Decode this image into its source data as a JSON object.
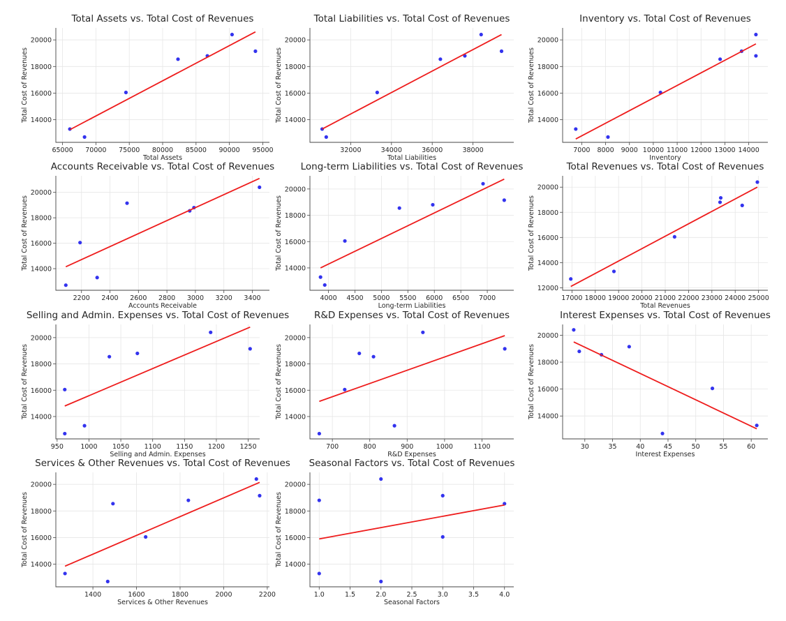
{
  "colors": {
    "point": "#3333ee",
    "fit_line": "#ee1c1c",
    "grid": "#e6e6e6"
  },
  "chart_data": [
    {
      "type": "scatter",
      "title": "Total Assets vs. Total Cost of Revenues",
      "xlabel": "Total Assets",
      "ylabel": "Total Cost of Revenues",
      "xlim": [
        64000,
        96000
      ],
      "ylim": [
        12300,
        20900
      ],
      "xticks": [
        65000,
        70000,
        75000,
        80000,
        85000,
        90000,
        95000
      ],
      "yticks": [
        14000,
        16000,
        18000,
        20000
      ],
      "x": [
        66100,
        68300,
        74500,
        82300,
        86700,
        90400,
        93900
      ],
      "y": [
        13300,
        12700,
        16050,
        18550,
        18800,
        20400,
        19150
      ],
      "fit_line": {
        "x": [
          66100,
          93900
        ],
        "y": [
          13250,
          20600
        ]
      },
      "grid": true
    },
    {
      "type": "scatter",
      "title": "Total Liabilities vs. Total Cost of Revenues",
      "xlabel": "Total Liabilities",
      "ylabel": "Total Cost of Revenues",
      "xlim": [
        30000,
        40000
      ],
      "ylim": [
        12300,
        20900
      ],
      "xticks": [
        32000,
        34000,
        36000,
        38000
      ],
      "yticks": [
        14000,
        16000,
        18000,
        20000
      ],
      "x": [
        30600,
        30800,
        33300,
        36400,
        37600,
        38400,
        39400
      ],
      "y": [
        13300,
        12700,
        16050,
        18550,
        18800,
        20400,
        19150
      ],
      "fit_line": {
        "x": [
          30600,
          39400
        ],
        "y": [
          13300,
          20400
        ]
      },
      "grid": true
    },
    {
      "type": "scatter",
      "title": "Inventory vs. Total Cost of Revenues",
      "xlabel": "Inventory",
      "ylabel": "Total Cost of Revenues",
      "xlim": [
        6200,
        14800
      ],
      "ylim": [
        12300,
        20900
      ],
      "xticks": [
        7000,
        8000,
        9000,
        10000,
        11000,
        12000,
        13000,
        14000
      ],
      "yticks": [
        14000,
        16000,
        18000,
        20000
      ],
      "x": [
        6750,
        8100,
        10300,
        12800,
        13700,
        14300,
        14300
      ],
      "y": [
        13300,
        12700,
        16050,
        18550,
        19150,
        18800,
        20400
      ],
      "fit_line": {
        "x": [
          6750,
          14300
        ],
        "y": [
          12550,
          19700
        ]
      },
      "grid": true
    },
    {
      "type": "scatter",
      "title": "Accounts Receivable vs. Total Cost of Revenues",
      "xlabel": "Accounts Receivable",
      "ylabel": "Total Cost of Revenues",
      "xlim": [
        2020,
        3520
      ],
      "ylim": [
        12300,
        21300
      ],
      "xticks": [
        2200,
        2400,
        2600,
        2800,
        3000,
        3200,
        3400
      ],
      "yticks": [
        14000,
        16000,
        18000,
        20000
      ],
      "x": [
        2090,
        2190,
        2310,
        2520,
        2960,
        2990,
        3450
      ],
      "y": [
        12700,
        16050,
        13300,
        19150,
        18550,
        18800,
        20400
      ],
      "fit_line": {
        "x": [
          2090,
          3450
        ],
        "y": [
          14150,
          21100
        ]
      },
      "grid": true
    },
    {
      "type": "scatter",
      "title": "Long-term Liabilities vs. Total Cost of Revenues",
      "xlabel": "Long-term Liabilities",
      "ylabel": "Total Cost of Revenues",
      "xlim": [
        3650,
        7500
      ],
      "ylim": [
        12300,
        21000
      ],
      "xticks": [
        4000,
        4500,
        5000,
        5500,
        6000,
        6500,
        7000
      ],
      "yticks": [
        14000,
        16000,
        18000,
        20000
      ],
      "x": [
        3850,
        3930,
        4310,
        5340,
        5970,
        6920,
        7320
      ],
      "y": [
        13300,
        12700,
        16050,
        18550,
        18800,
        20400,
        19150
      ],
      "fit_line": {
        "x": [
          3850,
          7320
        ],
        "y": [
          14000,
          20750
        ]
      },
      "grid": true
    },
    {
      "type": "scatter",
      "title": "Total Revenues vs. Total Cost of Revenues",
      "xlabel": "Total Revenues",
      "ylabel": "Total Cost of Revenues",
      "xlim": [
        16600,
        25400
      ],
      "ylim": [
        11800,
        20900
      ],
      "xticks": [
        17000,
        18000,
        19000,
        20000,
        21000,
        22000,
        23000,
        24000,
        25000
      ],
      "yticks": [
        12000,
        14000,
        16000,
        18000,
        20000
      ],
      "x": [
        16950,
        18800,
        21400,
        23350,
        23380,
        24300,
        24950
      ],
      "y": [
        12700,
        13300,
        16050,
        18800,
        19150,
        18550,
        20400
      ],
      "fit_line": {
        "x": [
          16950,
          24950
        ],
        "y": [
          12100,
          20000
        ]
      },
      "grid": true
    },
    {
      "type": "scatter",
      "title": "Selling and Admin. Expenses vs. Total Cost of Revenues",
      "xlabel": "Selling and Admin. Expenses",
      "ylabel": "Total Cost of Revenues",
      "xlim": [
        948,
        1268
      ],
      "ylim": [
        12300,
        21000
      ],
      "xticks": [
        950,
        1000,
        1050,
        1100,
        1150,
        1200,
        1250
      ],
      "yticks": [
        14000,
        16000,
        18000,
        20000
      ],
      "x": [
        962,
        962,
        993,
        1032,
        1076,
        1191,
        1253
      ],
      "y": [
        16050,
        12700,
        13300,
        18550,
        18800,
        20400,
        19150
      ],
      "fit_line": {
        "x": [
          962,
          1253
        ],
        "y": [
          14800,
          20800
        ]
      },
      "grid": true
    },
    {
      "type": "scatter",
      "title": "R&D Expenses vs. Total Cost of Revenues",
      "xlabel": "R&D Expenses",
      "ylabel": "Total Cost of Revenues",
      "xlim": [
        640,
        1185
      ],
      "ylim": [
        12300,
        21000
      ],
      "xticks": [
        700,
        800,
        900,
        1000,
        1100
      ],
      "yticks": [
        14000,
        16000,
        18000,
        20000
      ],
      "x": [
        665,
        733,
        772,
        810,
        866,
        942,
        1161
      ],
      "y": [
        12700,
        16050,
        18800,
        18550,
        13300,
        20400,
        19150
      ],
      "fit_line": {
        "x": [
          665,
          1161
        ],
        "y": [
          15150,
          20150
        ]
      },
      "grid": true
    },
    {
      "type": "scatter",
      "title": "Interest Expenses vs. Total Cost of Revenues",
      "xlabel": "Interest Expenses",
      "ylabel": "Total Cost of Revenues",
      "xlim": [
        26,
        63
      ],
      "ylim": [
        12300,
        20800
      ],
      "xticks": [
        30,
        35,
        40,
        45,
        50,
        55,
        60
      ],
      "yticks": [
        14000,
        16000,
        18000,
        20000
      ],
      "x": [
        28,
        29,
        33,
        38,
        44,
        53,
        61
      ],
      "y": [
        20400,
        18800,
        18550,
        19150,
        12700,
        16050,
        13300
      ],
      "fit_line": {
        "x": [
          28,
          61
        ],
        "y": [
          19500,
          13050
        ]
      },
      "grid": true
    },
    {
      "type": "scatter",
      "title": "Services & Other Revenues vs. Total Cost of Revenues",
      "xlabel": "Services & Other Revenues",
      "ylabel": "Total Cost of Revenues",
      "xlim": [
        1230,
        2210
      ],
      "ylim": [
        12300,
        20900
      ],
      "xticks": [
        1400,
        1600,
        1800,
        2000,
        2200
      ],
      "yticks": [
        14000,
        16000,
        18000,
        20000
      ],
      "x": [
        1272,
        1468,
        1492,
        1642,
        1838,
        2150,
        2165
      ],
      "y": [
        13300,
        12700,
        18550,
        16050,
        18800,
        20400,
        19150
      ],
      "fit_line": {
        "x": [
          1272,
          2165
        ],
        "y": [
          13850,
          20150
        ]
      },
      "grid": true
    },
    {
      "type": "scatter",
      "title": "Seasonal Factors vs. Total Cost of Revenues",
      "xlabel": "Seasonal Factors",
      "ylabel": "Total Cost of Revenues",
      "xlim": [
        0.85,
        4.15
      ],
      "ylim": [
        12300,
        20900
      ],
      "xticks": [
        1.0,
        1.5,
        2.0,
        2.5,
        3.0,
        3.5,
        4.0
      ],
      "yticks": [
        14000,
        16000,
        18000,
        20000
      ],
      "x": [
        1,
        1,
        2,
        2,
        3,
        3,
        4
      ],
      "y": [
        18800,
        13300,
        20400,
        12700,
        19150,
        16050,
        18550
      ],
      "fit_line": {
        "x": [
          1,
          4
        ],
        "y": [
          15900,
          18450
        ]
      },
      "grid": true
    }
  ]
}
